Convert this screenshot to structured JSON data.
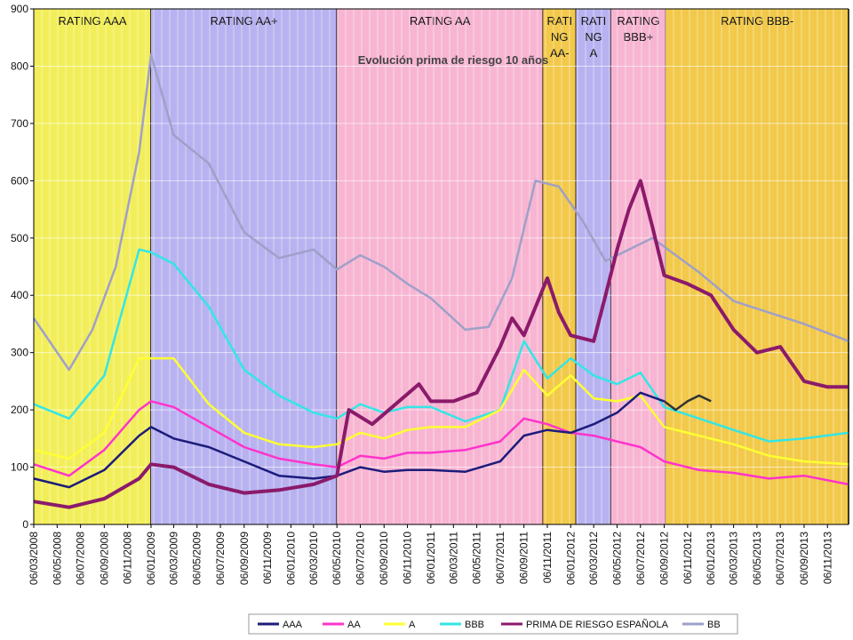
{
  "chart_data": {
    "type": "line",
    "title": "Evolución prima de riesgo 10 años",
    "xlabel": "",
    "ylabel": "",
    "ylim": [
      0,
      900
    ],
    "yticks": [
      0,
      100,
      200,
      300,
      400,
      500,
      600,
      700,
      800,
      900
    ],
    "xlim": [
      "2008-03-06",
      "2013-12-31"
    ],
    "xtick_labels": [
      "06/03/2008",
      "06/05/2008",
      "06/07/2008",
      "06/09/2008",
      "06/11/2008",
      "06/01/2009",
      "06/03/2009",
      "06/05/2009",
      "06/07/2009",
      "06/09/2009",
      "06/11/2009",
      "06/01/2010",
      "06/03/2010",
      "06/05/2010",
      "06/07/2010",
      "06/09/2010",
      "06/11/2010",
      "06/01/2011",
      "06/03/2011",
      "06/05/2011",
      "06/07/2011",
      "06/09/2011",
      "06/11/2011",
      "06/01/2012",
      "06/03/2012",
      "06/05/2012",
      "06/07/2012",
      "06/09/2012",
      "06/11/2012",
      "06/01/2013",
      "06/03/2013",
      "06/05/2013",
      "06/07/2013",
      "06/09/2013",
      "06/11/2013"
    ],
    "grid": true,
    "legend_position": "bottom",
    "rating_bands": [
      {
        "label": "RATING AAA",
        "start": "2008-03-06",
        "end": "2009-01-06",
        "color": "#f2ee5a"
      },
      {
        "label": "RATING AA+",
        "start": "2009-01-06",
        "end": "2010-05-06",
        "color": "#b8b2f0"
      },
      {
        "label": "RATING AA",
        "start": "2010-05-06",
        "end": "2011-10-26",
        "color": "#f7b5d2"
      },
      {
        "label": "RATI NG AA-",
        "start": "2011-10-26",
        "end": "2012-01-20",
        "color": "#f2c94a"
      },
      {
        "label": "RATI NG A",
        "start": "2012-01-20",
        "end": "2012-04-20",
        "color": "#b8b2f0"
      },
      {
        "label": "RATING BBB+",
        "start": "2012-04-20",
        "end": "2012-09-10",
        "color": "#f7b5d2"
      },
      {
        "label": "RATING BBB-",
        "start": "2012-09-10",
        "end": "2013-12-31",
        "color": "#f2c94a"
      }
    ],
    "series": [
      {
        "name": "AAA",
        "color": "#1c1c7a",
        "x": [
          "2008-03-06",
          "2008-06-06",
          "2008-09-06",
          "2008-12-06",
          "2009-01-06",
          "2009-03-06",
          "2009-06-06",
          "2009-09-06",
          "2009-12-06",
          "2010-03-06",
          "2010-05-06",
          "2010-07-06",
          "2010-09-06",
          "2010-11-06",
          "2011-01-06",
          "2011-04-06",
          "2011-07-06",
          "2011-09-06",
          "2011-11-06",
          "2012-01-06",
          "2012-03-06",
          "2012-05-06",
          "2012-07-06",
          "2012-09-06"
        ],
        "values": [
          80,
          65,
          95,
          155,
          170,
          150,
          135,
          110,
          85,
          80,
          85,
          100,
          92,
          95,
          95,
          92,
          110,
          155,
          165,
          160,
          175,
          195,
          230,
          215
        ]
      },
      {
        "name": "AA",
        "color": "#ff33cc",
        "x": [
          "2008-03-06",
          "2008-06-06",
          "2008-09-06",
          "2008-12-06",
          "2009-01-06",
          "2009-03-06",
          "2009-06-06",
          "2009-09-06",
          "2009-12-06",
          "2010-03-06",
          "2010-05-06",
          "2010-07-06",
          "2010-09-06",
          "2010-11-06",
          "2011-01-06",
          "2011-04-06",
          "2011-07-06",
          "2011-09-06",
          "2011-11-06",
          "2012-01-06",
          "2012-03-06",
          "2012-05-06",
          "2012-07-06",
          "2012-09-06",
          "2012-12-06",
          "2013-03-06",
          "2013-06-06",
          "2013-09-06",
          "2013-12-31"
        ],
        "values": [
          105,
          85,
          130,
          200,
          215,
          205,
          170,
          135,
          115,
          105,
          100,
          120,
          115,
          125,
          125,
          130,
          145,
          185,
          175,
          160,
          155,
          145,
          135,
          110,
          95,
          90,
          80,
          85,
          70
        ]
      },
      {
        "name": "A",
        "color": "#ffff33",
        "x": [
          "2008-03-06",
          "2008-06-06",
          "2008-09-06",
          "2008-12-06",
          "2009-01-06",
          "2009-03-06",
          "2009-06-06",
          "2009-09-06",
          "2009-12-06",
          "2010-03-06",
          "2010-05-06",
          "2010-07-06",
          "2010-09-06",
          "2010-11-06",
          "2011-01-06",
          "2011-04-06",
          "2011-07-06",
          "2011-09-06",
          "2011-11-06",
          "2012-01-06",
          "2012-03-06",
          "2012-05-06",
          "2012-07-06",
          "2012-09-06",
          "2012-12-06",
          "2013-03-06",
          "2013-06-06",
          "2013-09-06",
          "2013-12-31"
        ],
        "values": [
          130,
          115,
          160,
          290,
          290,
          290,
          210,
          160,
          140,
          135,
          140,
          160,
          150,
          165,
          170,
          170,
          200,
          270,
          225,
          260,
          220,
          215,
          225,
          170,
          155,
          140,
          120,
          110,
          105
        ]
      },
      {
        "name": "BBB",
        "color": "#33e6e6",
        "x": [
          "2008-03-06",
          "2008-06-06",
          "2008-09-06",
          "2008-12-06",
          "2009-01-06",
          "2009-03-06",
          "2009-06-06",
          "2009-09-06",
          "2009-12-06",
          "2010-03-06",
          "2010-05-06",
          "2010-07-06",
          "2010-09-06",
          "2010-11-06",
          "2011-01-06",
          "2011-04-06",
          "2011-07-06",
          "2011-09-06",
          "2011-11-06",
          "2012-01-06",
          "2012-03-06",
          "2012-05-06",
          "2012-07-06",
          "2012-09-06",
          "2012-12-06",
          "2013-03-06",
          "2013-06-06",
          "2013-09-06",
          "2013-12-31"
        ],
        "values": [
          210,
          185,
          260,
          480,
          475,
          455,
          380,
          270,
          225,
          195,
          185,
          210,
          195,
          205,
          205,
          180,
          200,
          320,
          255,
          290,
          260,
          245,
          265,
          205,
          185,
          165,
          145,
          150,
          160
        ]
      },
      {
        "name": "PRIMA DE RIESGO ESPAÑOLA",
        "color": "#8b1a6b",
        "x": [
          "2008-03-06",
          "2008-06-06",
          "2008-09-06",
          "2008-12-06",
          "2009-01-06",
          "2009-03-06",
          "2009-06-06",
          "2009-09-06",
          "2009-12-06",
          "2010-03-06",
          "2010-05-06",
          "2010-06-06",
          "2010-08-06",
          "2010-10-06",
          "2010-12-06",
          "2011-01-06",
          "2011-03-06",
          "2011-05-06",
          "2011-07-06",
          "2011-08-06",
          "2011-09-06",
          "2011-11-06",
          "2011-12-06",
          "2012-01-06",
          "2012-03-06",
          "2012-04-06",
          "2012-05-06",
          "2012-06-06",
          "2012-07-06",
          "2012-08-06",
          "2012-09-06",
          "2012-11-06",
          "2013-01-06",
          "2013-03-06",
          "2013-05-06",
          "2013-07-06",
          "2013-09-06",
          "2013-11-06",
          "2013-12-31"
        ],
        "values": [
          40,
          30,
          45,
          80,
          105,
          100,
          70,
          55,
          60,
          70,
          85,
          200,
          175,
          210,
          245,
          215,
          215,
          230,
          310,
          360,
          330,
          430,
          370,
          330,
          320,
          400,
          480,
          550,
          600,
          520,
          435,
          420,
          400,
          340,
          300,
          310,
          250,
          240,
          240
        ]
      },
      {
        "name": "BB",
        "color": "#9fa0c8",
        "x": [
          "2008-03-06",
          "2008-06-06",
          "2008-08-06",
          "2008-10-06",
          "2008-12-06",
          "2009-01-06",
          "2009-03-06",
          "2009-06-06",
          "2009-09-06",
          "2009-12-06",
          "2010-03-06",
          "2010-05-06",
          "2010-07-06",
          "2010-09-06",
          "2010-11-06",
          "2011-01-06",
          "2011-04-06",
          "2011-06-06",
          "2011-08-06",
          "2011-10-06",
          "2011-12-06",
          "2012-02-06",
          "2012-04-06",
          "2012-06-06",
          "2012-08-06",
          "2012-10-06",
          "2012-12-06",
          "2013-03-06",
          "2013-06-06",
          "2013-09-06",
          "2013-12-31"
        ],
        "values": [
          360,
          270,
          340,
          450,
          650,
          820,
          680,
          630,
          510,
          465,
          480,
          445,
          470,
          450,
          420,
          395,
          340,
          345,
          430,
          600,
          590,
          530,
          460,
          480,
          500,
          470,
          440,
          390,
          370,
          350,
          320
        ]
      },
      {
        "name": "",
        "color": "#333333",
        "x": [
          "2012-09-06",
          "2012-10-06",
          "2012-11-06",
          "2012-12-06",
          "2013-01-06"
        ],
        "values": [
          215,
          200,
          215,
          225,
          215
        ]
      }
    ]
  }
}
